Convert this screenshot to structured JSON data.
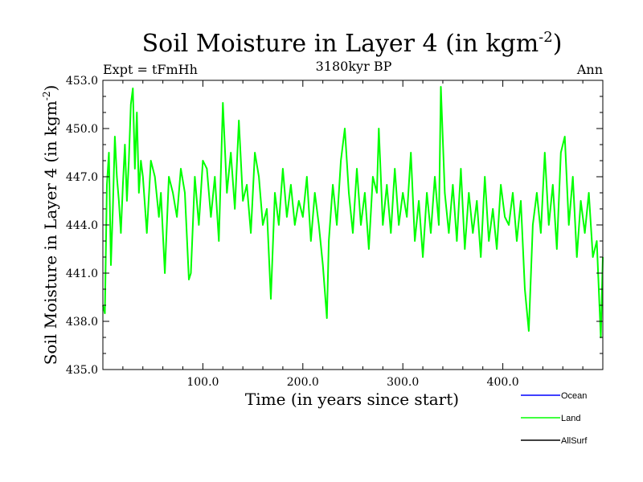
{
  "chart_data": {
    "type": "line",
    "title": "Soil Moisture in Layer 4 (in kgm",
    "title_sup": "-2",
    "title_close": ")",
    "subtitle": "3180kyr BP",
    "left_note": "Expt = tFmHh",
    "right_note": "Ann",
    "xlabel": "Time (in years since start)",
    "ylabel": "Soil Moisture in Layer 4 (in kgm",
    "ylabel_sup": "-2",
    "ylabel_close": ")",
    "xlim": [
      0,
      500
    ],
    "ylim": [
      435.0,
      453.0
    ],
    "xticks": [
      100,
      200,
      300,
      400
    ],
    "xtick_labels": [
      "100.0",
      "200.0",
      "300.0",
      "400.0"
    ],
    "yticks": [
      435,
      438,
      441,
      444,
      447,
      450,
      453
    ],
    "ytick_labels": [
      "435.0",
      "438.0",
      "441.0",
      "444.0",
      "447.0",
      "450.0",
      "453.0"
    ],
    "legend": [
      {
        "name": "Ocean",
        "color": "#0000ff"
      },
      {
        "name": "Land",
        "color": "#00ff00"
      },
      {
        "name": "AllSurf",
        "color": "#000000"
      }
    ],
    "series": [
      {
        "name": "Land",
        "color": "#00ff00",
        "x": [
          0,
          2,
          4,
          6,
          8,
          10,
          12,
          14,
          16,
          18,
          20,
          22,
          24,
          26,
          28,
          30,
          32,
          34,
          36,
          38,
          40,
          44,
          48,
          52,
          56,
          58,
          62,
          66,
          70,
          74,
          78,
          82,
          86,
          88,
          92,
          96,
          100,
          104,
          108,
          112,
          116,
          120,
          124,
          128,
          132,
          136,
          140,
          144,
          148,
          152,
          156,
          160,
          164,
          168,
          172,
          176,
          180,
          184,
          188,
          192,
          196,
          200,
          204,
          208,
          212,
          216,
          220,
          224,
          226,
          230,
          234,
          238,
          242,
          246,
          250,
          254,
          258,
          262,
          266,
          270,
          274,
          276,
          280,
          284,
          288,
          292,
          296,
          300,
          304,
          308,
          312,
          316,
          320,
          324,
          328,
          332,
          336,
          338,
          342,
          346,
          350,
          354,
          358,
          362,
          366,
          370,
          374,
          378,
          382,
          386,
          390,
          394,
          398,
          402,
          406,
          410,
          414,
          418,
          422,
          426,
          430,
          434,
          438,
          442,
          446,
          450,
          454,
          458,
          462,
          466,
          470,
          474,
          478,
          482,
          486,
          490,
          494,
          496,
          498,
          500
        ],
        "values": [
          439.0,
          438.5,
          446.5,
          448.5,
          441.5,
          445.0,
          449.5,
          447.0,
          445.5,
          443.5,
          446.5,
          449.0,
          445.5,
          448.0,
          451.5,
          452.5,
          447.5,
          451.0,
          446.0,
          448.0,
          447.0,
          443.5,
          448.0,
          447.0,
          444.5,
          446.0,
          441.0,
          447.0,
          446.0,
          444.5,
          447.5,
          446.0,
          440.6,
          441.0,
          447.0,
          444.0,
          448.0,
          447.5,
          444.5,
          447.0,
          443.0,
          451.6,
          446.0,
          448.5,
          445.0,
          450.5,
          445.5,
          446.5,
          443.5,
          448.5,
          447.0,
          444.0,
          445.0,
          439.4,
          446.0,
          444.0,
          447.5,
          444.5,
          446.5,
          444.0,
          445.5,
          444.5,
          447.0,
          443.0,
          446.0,
          444.0,
          441.5,
          438.2,
          443.0,
          446.5,
          444.0,
          448.0,
          450.0,
          446.0,
          443.5,
          447.5,
          444.0,
          446.0,
          442.5,
          447.0,
          446.0,
          450.0,
          444.0,
          446.5,
          443.5,
          447.5,
          444.0,
          446.0,
          444.5,
          448.5,
          443.0,
          445.5,
          442.0,
          446.0,
          443.5,
          447.0,
          444.0,
          452.6,
          446.0,
          443.5,
          446.5,
          443.0,
          447.5,
          442.5,
          446.0,
          443.5,
          445.5,
          442.0,
          447.0,
          443.0,
          445.0,
          442.5,
          446.5,
          444.5,
          444.0,
          446.0,
          443.0,
          445.5,
          440.0,
          437.4,
          444.0,
          446.0,
          443.5,
          448.5,
          444.0,
          446.5,
          442.5,
          448.5,
          449.5,
          444.0,
          447.0,
          442.0,
          445.5,
          443.5,
          446.0,
          442.0,
          443.0,
          440.0,
          437.0,
          442.0
        ]
      }
    ]
  }
}
